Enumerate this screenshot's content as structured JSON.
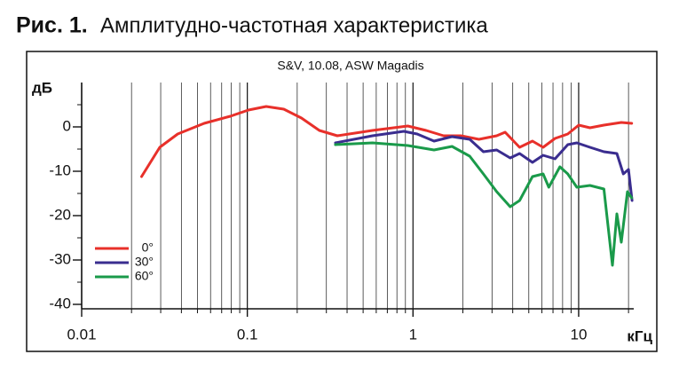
{
  "chart_data": {
    "type": "line",
    "figure_label": "Рис. 1.",
    "title": "Амплитудно-частотная характеристика",
    "subtitle": "S&V, 10.08, ASW Magadis",
    "xlabel": "кГц",
    "ylabel": "дБ",
    "xscale": "log",
    "xlim": [
      0.01,
      21.5
    ],
    "xticks": [
      0.01,
      0.1,
      1,
      10
    ],
    "xminor_ticks": [
      0.02,
      0.03,
      0.04,
      0.05,
      0.06,
      0.07,
      0.08,
      0.09,
      0.2,
      0.3,
      0.4,
      0.5,
      0.6,
      0.7,
      0.8,
      0.9,
      2,
      3,
      4,
      5,
      6,
      7,
      8,
      9,
      20
    ],
    "ylim": [
      -41,
      10
    ],
    "yticks": [
      -40,
      -30,
      -20,
      -10,
      0
    ],
    "yminor_ticks": [
      -35,
      -25,
      -15,
      -5,
      5
    ],
    "grid": true,
    "legend": "lower left",
    "series": [
      {
        "name": "0°",
        "color": "#e8302a",
        "x": [
          0.023,
          0.0296,
          0.038,
          0.0549,
          0.079,
          0.1016,
          0.13,
          0.166,
          0.212,
          0.272,
          0.349,
          0.57,
          0.93,
          1.2,
          1.53,
          1.95,
          2.5,
          3.2,
          3.6,
          4.4,
          5.26,
          6.1,
          7.2,
          8.6,
          10,
          11.7,
          14.2,
          18.1,
          20.9
        ],
        "values": [
          -11.2,
          -4.6,
          -1.6,
          0.8,
          2.4,
          3.8,
          4.6,
          4.0,
          2.0,
          -0.8,
          -2,
          -0.8,
          0.2,
          -0.8,
          -2,
          -2,
          -2.8,
          -2,
          -1.2,
          -4.6,
          -3.2,
          -4.6,
          -2.6,
          -1.6,
          0.4,
          -0.2,
          0.4,
          1.0,
          0.8
        ]
      },
      {
        "name": "30°",
        "color": "#3a2d8f",
        "x": [
          0.34,
          0.57,
          0.88,
          1.06,
          1.34,
          1.72,
          2.2,
          2.66,
          3.2,
          3.86,
          4.4,
          5.26,
          6.1,
          7.2,
          8.6,
          9.75,
          11.7,
          14.2,
          17,
          18.6,
          20,
          21
        ],
        "values": [
          -3.6,
          -2,
          -1,
          -1.6,
          -3.2,
          -2.2,
          -2.8,
          -5.6,
          -5.2,
          -7,
          -6,
          -8,
          -6.4,
          -7.2,
          -4,
          -3.6,
          -4.6,
          -5.6,
          -6,
          -10.6,
          -9.6,
          -16.6
        ]
      },
      {
        "name": "60°",
        "color": "#1a9a4a",
        "x": [
          0.34,
          0.57,
          0.93,
          1.34,
          1.72,
          2.2,
          2.66,
          3.2,
          3.86,
          4.4,
          5.26,
          6.1,
          6.6,
          7.7,
          8.6,
          9.75,
          11.7,
          14.2,
          16,
          17,
          18.1,
          19.7,
          20.9
        ],
        "values": [
          -4,
          -3.6,
          -4.2,
          -5.2,
          -4.4,
          -6.6,
          -10.6,
          -14.6,
          -18,
          -16.6,
          -11.2,
          -10.6,
          -13.6,
          -9,
          -10.6,
          -13.6,
          -13.2,
          -14,
          -31.2,
          -19.6,
          -26,
          -14.6,
          -16
        ]
      }
    ]
  }
}
